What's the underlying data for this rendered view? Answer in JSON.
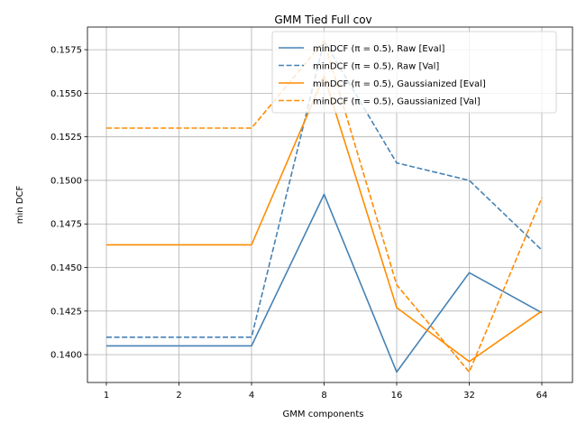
{
  "chart_data": {
    "type": "line",
    "title": "GMM Tied Full cov",
    "xlabel": "GMM components",
    "ylabel": "min DCF",
    "categories": [
      "1",
      "2",
      "4",
      "8",
      "16",
      "32",
      "64"
    ],
    "x": [
      1,
      2,
      4,
      8,
      16,
      32,
      64
    ],
    "x_scale": "log2",
    "ylim": [
      0.1384,
      0.1588
    ],
    "yticks": [
      "0.1400",
      "0.1425",
      "0.1450",
      "0.1475",
      "0.1500",
      "0.1525",
      "0.1550",
      "0.1575"
    ],
    "grid": true,
    "legend_position": "top-right",
    "series": [
      {
        "name": "minDCF (π = 0.5), Raw [Eval]",
        "color": "#4682b4",
        "dash": "solid",
        "x": [
          1,
          4,
          8,
          16,
          32,
          64
        ],
        "values": [
          0.1405,
          0.1405,
          0.1492,
          0.139,
          0.1447,
          0.1424
        ]
      },
      {
        "name": "minDCF (π = 0.5), Raw [Val]",
        "color": "#4682b4",
        "dash": "dashed",
        "x": [
          1,
          4,
          8,
          16,
          32,
          64
        ],
        "values": [
          0.141,
          0.141,
          0.158,
          0.151,
          0.15,
          0.146
        ]
      },
      {
        "name": "minDCF (π = 0.5), Gaussianized [Eval]",
        "color": "#ff8c00",
        "dash": "solid",
        "x": [
          1,
          4,
          8,
          16,
          32,
          64
        ],
        "values": [
          0.1463,
          0.1463,
          0.156,
          0.1427,
          0.1396,
          0.1425
        ]
      },
      {
        "name": "minDCF (π = 0.5), Gaussianized [Val]",
        "color": "#ff8c00",
        "dash": "dashed",
        "x": [
          1,
          4,
          8,
          16,
          32,
          64
        ],
        "values": [
          0.153,
          0.153,
          0.158,
          0.144,
          0.139,
          0.149
        ]
      }
    ]
  }
}
